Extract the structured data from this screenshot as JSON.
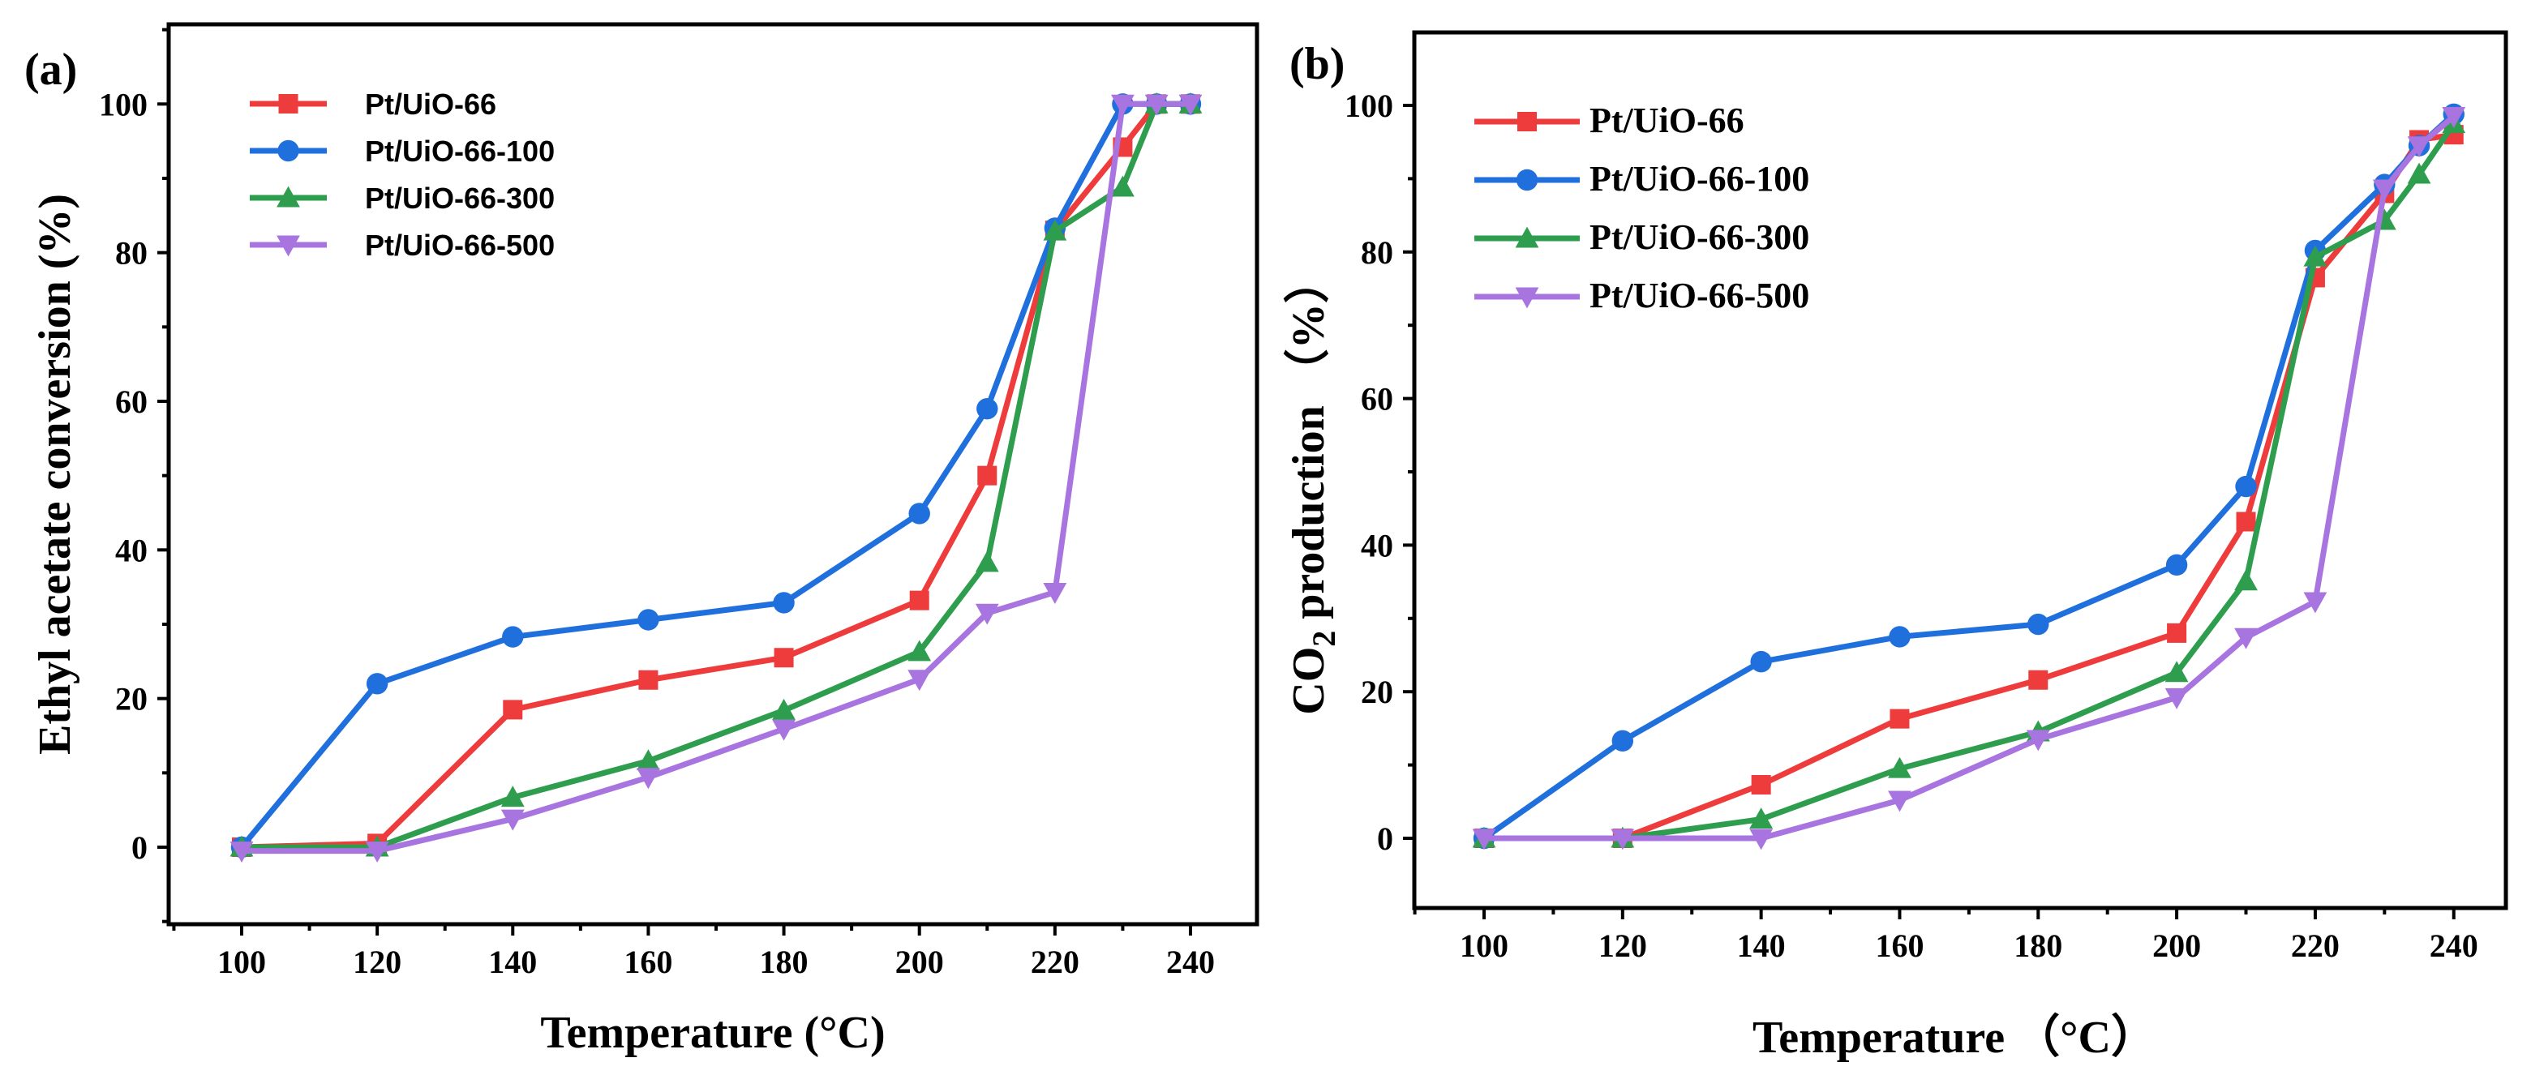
{
  "chart_data": [
    {
      "panel": "(a)",
      "type": "line",
      "xlabel": "Temperature (°C)",
      "ylabel": "Ethyl acetate conversion  (%)",
      "xlim": [
        90,
        250
      ],
      "ylim": [
        -10,
        110
      ],
      "xticks": [
        100,
        120,
        140,
        160,
        180,
        200,
        220,
        240
      ],
      "yticks": [
        0,
        20,
        40,
        60,
        80,
        100
      ],
      "legend_position": "top-left",
      "series": [
        {
          "name": "Pt/UiO-66",
          "color": "#ee3b3b",
          "marker": "square",
          "x": [
            100,
            120,
            140,
            160,
            180,
            200,
            210,
            220,
            230,
            235,
            240
          ],
          "y": [
            0,
            0.5,
            18.5,
            22.5,
            25.5,
            33.2,
            50,
            83,
            94.2,
            100,
            100
          ]
        },
        {
          "name": "Pt/UiO-66-100",
          "color": "#1f6fdc",
          "marker": "circle",
          "x": [
            100,
            120,
            140,
            160,
            180,
            200,
            210,
            220,
            230,
            235,
            240
          ],
          "y": [
            0,
            22,
            28.3,
            30.6,
            32.9,
            44.9,
            59,
            83.3,
            100,
            100,
            100
          ]
        },
        {
          "name": "Pt/UiO-66-300",
          "color": "#2e9e4e",
          "marker": "triangle-up",
          "x": [
            100,
            120,
            140,
            160,
            180,
            200,
            210,
            220,
            230,
            235,
            240
          ],
          "y": [
            0,
            0,
            6.7,
            11.6,
            18.4,
            26.3,
            38.3,
            82.9,
            88.8,
            100,
            100
          ]
        },
        {
          "name": "Pt/UiO-66-500",
          "color": "#a874e0",
          "marker": "triangle-down",
          "x": [
            100,
            120,
            140,
            160,
            180,
            200,
            210,
            220,
            230,
            235,
            240
          ],
          "y": [
            -0.5,
            -0.5,
            3.8,
            9.4,
            15.9,
            22.6,
            31.5,
            34.3,
            100,
            100,
            100
          ]
        }
      ]
    },
    {
      "panel": "(b)",
      "type": "line",
      "xlabel_main": "Temperature",
      "xlabel_unit": "（°C）",
      "ylabel_main": "CO",
      "ylabel_sub": "2",
      "ylabel_rest": " production",
      "ylabel_unit": "（%）",
      "xlim": [
        90,
        250
      ],
      "ylim": [
        -10,
        110
      ],
      "xticks": [
        100,
        120,
        140,
        160,
        180,
        200,
        220,
        240
      ],
      "yticks": [
        0,
        20,
        40,
        60,
        80,
        100
      ],
      "legend_position": "top-left",
      "series": [
        {
          "name": "Pt/UiO-66",
          "color": "#ee3b3b",
          "marker": "square",
          "x": [
            100,
            120,
            140,
            160,
            180,
            200,
            210,
            220,
            230,
            235,
            240
          ],
          "y": [
            0,
            0,
            7.3,
            16.3,
            21.6,
            28,
            43.2,
            76.5,
            88,
            95.3,
            96
          ]
        },
        {
          "name": "Pt/UiO-66-100",
          "color": "#1f6fdc",
          "marker": "circle",
          "x": [
            100,
            120,
            140,
            160,
            180,
            200,
            210,
            220,
            230,
            235,
            240
          ],
          "y": [
            0,
            13.3,
            24.1,
            27.5,
            29.2,
            37.3,
            48,
            80.2,
            89.2,
            94.5,
            98.8
          ]
        },
        {
          "name": "Pt/UiO-66-300",
          "color": "#2e9e4e",
          "marker": "triangle-up",
          "x": [
            100,
            120,
            140,
            160,
            180,
            200,
            210,
            220,
            230,
            235,
            240
          ],
          "y": [
            0,
            0,
            2.6,
            9.5,
            14.5,
            22.6,
            35.1,
            79.3,
            84.3,
            90.6,
            97.5
          ]
        },
        {
          "name": "Pt/UiO-66-500",
          "color": "#a874e0",
          "marker": "triangle-down",
          "x": [
            100,
            120,
            140,
            160,
            180,
            200,
            210,
            220,
            230,
            235,
            240
          ],
          "y": [
            0,
            0,
            0,
            5.2,
            13.5,
            19.2,
            27.4,
            32.3,
            88.6,
            94.5,
            98.5
          ]
        }
      ]
    }
  ]
}
